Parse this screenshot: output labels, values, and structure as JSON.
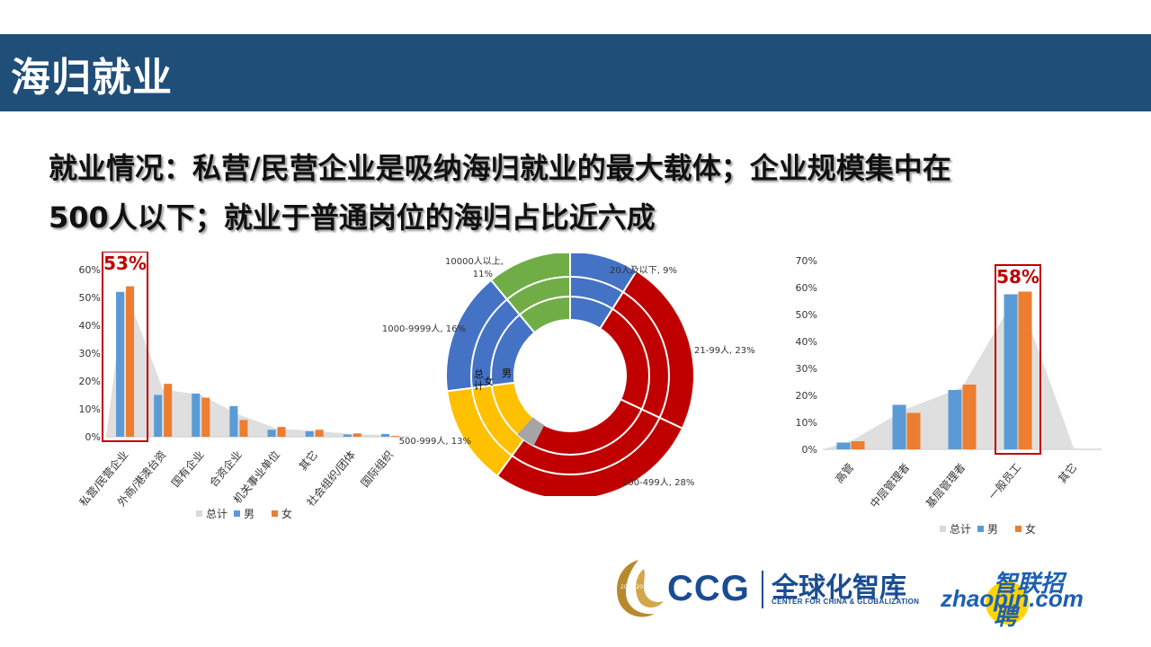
{
  "slide": {
    "title": "海归就业",
    "headline_line1": "就业情况：私营/民营企业是吸纳海归就业的最大载体；企业规模集中在",
    "headline_line2": "500人以下；就业于普通岗位的海归占比近六成"
  },
  "colors": {
    "title_bar": "#1f4e79",
    "total": "#d9d9d9",
    "male": "#5b9bd5",
    "female": "#ed7d31",
    "highlight": "#c00000"
  },
  "chart_data": [
    {
      "type": "bar",
      "name_key": "employer_type",
      "categories": [
        "私营/民营企业",
        "外商/港澳台资",
        "国有企业",
        "合资企业",
        "机关事业单位",
        "其它",
        "社会组织/团体",
        "国际组织"
      ],
      "series": [
        {
          "name": "总计",
          "type": "area",
          "values": [
            53,
            17,
            15,
            8,
            3,
            2,
            1,
            0.5
          ]
        },
        {
          "name": "男",
          "values": [
            52,
            15,
            15.5,
            11,
            2.5,
            2,
            0.8,
            1
          ]
        },
        {
          "name": "女",
          "values": [
            54,
            19,
            14,
            6,
            3.5,
            2.5,
            1.2,
            0.3
          ]
        }
      ],
      "ylim": [
        0,
        60
      ],
      "yticks": [
        "0%",
        "10%",
        "20%",
        "30%",
        "40%",
        "50%",
        "60%"
      ],
      "highlight_label": "53%",
      "legend": [
        "总计",
        "男",
        "女"
      ],
      "grid": false
    },
    {
      "type": "pie",
      "subtype": "doughnut",
      "rings": [
        "总计",
        "女",
        "男"
      ],
      "slices": [
        {
          "label": "20人及以下",
          "value": 9,
          "text": "20人及以下, 9%",
          "color": "#4472c4"
        },
        {
          "label": "21-99人",
          "value": 23,
          "text": "21-99人, 23%",
          "color": "#c00000"
        },
        {
          "label": "100-499人",
          "value": 28,
          "text": "100-499人, 28%",
          "color": "#c00000"
        },
        {
          "label": "500-999人",
          "value": 13,
          "text": "500-999人, 13%",
          "color": "#ffc000"
        },
        {
          "label": "1000-9999人",
          "value": 16,
          "text": "1000-9999人, 16%",
          "color": "#4472c4"
        },
        {
          "label": "10000人以上",
          "value": 11,
          "text": "10000人以上, 11%",
          "color": "#70ad47"
        }
      ]
    },
    {
      "type": "bar",
      "name_key": "position_level",
      "categories": [
        "高管",
        "中层管理者",
        "基层管理者",
        "一般员工",
        "其它"
      ],
      "series": [
        {
          "name": "总计",
          "type": "area",
          "values": [
            3,
            15,
            23,
            58,
            0.5
          ]
        },
        {
          "name": "男",
          "values": [
            2.5,
            16.5,
            22,
            57.5,
            0
          ]
        },
        {
          "name": "女",
          "values": [
            3,
            13.5,
            24,
            58.5,
            0
          ]
        }
      ],
      "ylim": [
        0,
        70
      ],
      "yticks": [
        "0%",
        "10%",
        "20%",
        "30%",
        "40%",
        "50%",
        "60%",
        "70%"
      ],
      "highlight_label": "58%",
      "legend": [
        "总计",
        "男",
        "女"
      ],
      "grid": false
    }
  ],
  "logos": {
    "ccg": "CCG",
    "ccg_cn": "全球化智库",
    "ccg_en": "CENTER FOR CHINA & GLOBALIZATION",
    "ccg_years": "2008-2018",
    "zhaopin_cn": "智联招聘",
    "zhaopin_en": "zhaopin.com"
  }
}
